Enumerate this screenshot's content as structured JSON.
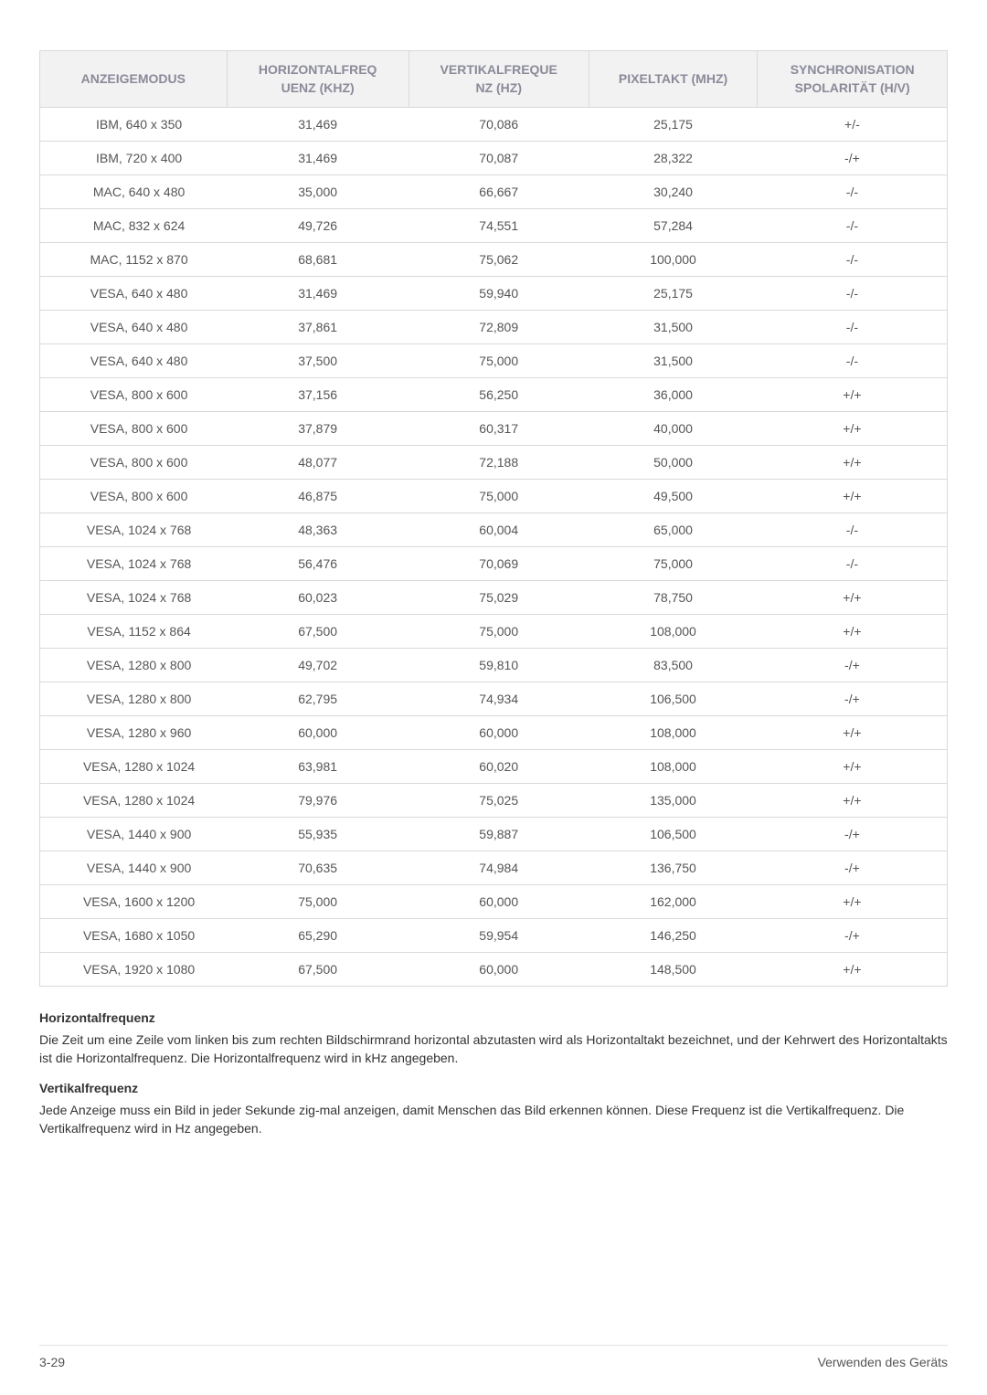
{
  "table": {
    "columns": [
      "ANZEIGEMODUS",
      "HORIZONTALFREQ\nUENZ (KHZ)",
      "VERTIKALFREQUE\nNZ (HZ)",
      "PIXELTAKT (MHZ)",
      "SYNCHRONISATION\nSPOLARITÄT (H/V)"
    ],
    "col_widths": [
      "20%",
      "20%",
      "20%",
      "20%",
      "20%"
    ],
    "header_bg": "#f2f2f2",
    "header_color": "#8a8a9a",
    "header_fontsize": 14,
    "border_color": "#d9d9d9",
    "cell_color": "#555555",
    "cell_fontsize": 14,
    "rows": [
      [
        "IBM, 640 x 350",
        "31,469",
        "70,086",
        "25,175",
        "+/-"
      ],
      [
        "IBM, 720 x 400",
        "31,469",
        "70,087",
        "28,322",
        "-/+"
      ],
      [
        "MAC, 640 x 480",
        "35,000",
        "66,667",
        "30,240",
        "-/-"
      ],
      [
        "MAC, 832 x 624",
        "49,726",
        "74,551",
        "57,284",
        "-/-"
      ],
      [
        "MAC, 1152 x 870",
        "68,681",
        "75,062",
        "100,000",
        "-/-"
      ],
      [
        "VESA, 640 x 480",
        "31,469",
        "59,940",
        "25,175",
        "-/-"
      ],
      [
        "VESA, 640 x 480",
        "37,861",
        "72,809",
        "31,500",
        "-/-"
      ],
      [
        "VESA, 640 x 480",
        "37,500",
        "75,000",
        "31,500",
        "-/-"
      ],
      [
        "VESA, 800 x 600",
        "37,156",
        "56,250",
        "36,000",
        "+/+"
      ],
      [
        "VESA, 800 x 600",
        "37,879",
        "60,317",
        "40,000",
        "+/+"
      ],
      [
        "VESA, 800 x 600",
        "48,077",
        "72,188",
        "50,000",
        "+/+"
      ],
      [
        "VESA, 800 x 600",
        "46,875",
        "75,000",
        "49,500",
        "+/+"
      ],
      [
        "VESA, 1024 x 768",
        "48,363",
        "60,004",
        "65,000",
        "-/-"
      ],
      [
        "VESA, 1024 x 768",
        "56,476",
        "70,069",
        "75,000",
        "-/-"
      ],
      [
        "VESA, 1024 x 768",
        "60,023",
        "75,029",
        "78,750",
        "+/+"
      ],
      [
        "VESA, 1152 x 864",
        "67,500",
        "75,000",
        "108,000",
        "+/+"
      ],
      [
        "VESA, 1280 x 800",
        "49,702",
        "59,810",
        "83,500",
        "-/+"
      ],
      [
        "VESA, 1280 x 800",
        "62,795",
        "74,934",
        "106,500",
        "-/+"
      ],
      [
        "VESA, 1280 x 960",
        "60,000",
        "60,000",
        "108,000",
        "+/+"
      ],
      [
        "VESA, 1280 x 1024",
        "63,981",
        "60,020",
        "108,000",
        "+/+"
      ],
      [
        "VESA, 1280 x 1024",
        "79,976",
        "75,025",
        "135,000",
        "+/+"
      ],
      [
        "VESA, 1440 x 900",
        "55,935",
        "59,887",
        "106,500",
        "-/+"
      ],
      [
        "VESA, 1440 x 900",
        "70,635",
        "74,984",
        "136,750",
        "-/+"
      ],
      [
        "VESA, 1600 x 1200",
        "75,000",
        "60,000",
        "162,000",
        "+/+"
      ],
      [
        "VESA, 1680 x 1050",
        "65,290",
        "59,954",
        "146,250",
        "-/+"
      ],
      [
        "VESA, 1920 x 1080",
        "67,500",
        "60,000",
        "148,500",
        "+/+"
      ]
    ]
  },
  "sections": {
    "heading1": "Horizontalfrequenz",
    "text1": "Die Zeit um eine Zeile vom linken bis zum rechten Bildschirmrand horizontal abzutasten wird als Horizontaltakt bezeichnet, und der Kehrwert des Horizontaltakts ist die Horizontalfrequenz. Die Horizontalfrequenz wird in kHz angegeben.",
    "heading2": "Vertikalfrequenz",
    "text2": "Jede Anzeige muss ein Bild in jeder Sekunde zig-mal anzeigen, damit Menschen das Bild erkennen können. Diese Frequenz ist die Vertikalfrequenz. Die Vertikalfrequenz wird in Hz angegeben."
  },
  "footer": {
    "left": "3-29",
    "right": "Verwenden des Geräts"
  }
}
